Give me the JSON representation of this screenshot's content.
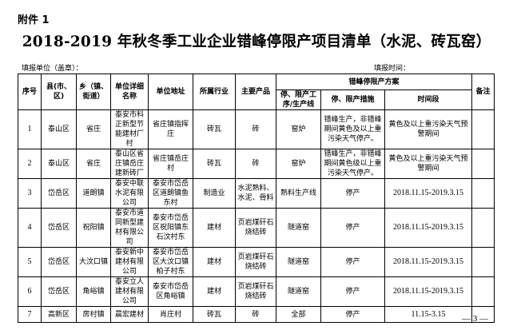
{
  "attachment": "附件 1",
  "title": "2018-2019 年秋冬季工业企业错峰停限产项目清单（水泥、砖瓦窑）",
  "fill_unit": "填报单位（盖章）：",
  "fill_time": "填报时间：",
  "headers": {
    "no": "序号",
    "county": "县(市、区)",
    "town": "乡（镇、街道）",
    "name": "单位详细名称",
    "address": "单位地址",
    "industry": "所属行业",
    "product": "主要产品",
    "plan": "错峰停限产方案",
    "line": "停、限产工序/生产线",
    "measure": "停、限产措施",
    "period": "时间段",
    "remark": "备注"
  },
  "rows": [
    {
      "no": "1",
      "county": "泰山区",
      "town": "省庄",
      "name": "泰安市科正新型节能建材厂村",
      "address": "省庄镇指挥庄",
      "industry": "砖瓦",
      "product": "砖",
      "line": "窑炉",
      "measure": "错峰生产，非错峰期间黄色及以上重污染天气停产。",
      "period": "黄色及以上重污染天气预警期间",
      "remark": ""
    },
    {
      "no": "2",
      "county": "泰山区",
      "town": "省庄",
      "name": "泰山区省庄镇岳庄建新砖厂",
      "address": "省庄镇岳庄村",
      "industry": "砖瓦",
      "product": "砖",
      "line": "窑炉",
      "measure": "错峰生产，非错峰期间黄色级以上重污染天气停产。",
      "period": "黄色及以上重污染天气预警期间",
      "remark": ""
    },
    {
      "no": "3",
      "county": "岱岳区",
      "town": "道朗镇",
      "name": "泰安中联水泥有限公司",
      "address": "泰安市岱岳区道朗镇鱼东村",
      "industry": "制造业",
      "product": "水泥熟料、水泥、骨料",
      "line": "熟料生产线",
      "measure": "停产",
      "period": "2018.11.15-2019.3.15",
      "remark": ""
    },
    {
      "no": "4",
      "county": "岱岳区",
      "town": "祝阳镇",
      "name": "泰安市道同新型建材有限公司",
      "address": "泰安市岱岳区祝阳镇东石汶村东",
      "industry": "建材",
      "product": "页岩煤矸石烧结砖",
      "line": "隧道窑",
      "measure": "停产",
      "period": "2018.11.15-2019.3.15",
      "remark": ""
    },
    {
      "no": "5",
      "county": "岱岳区",
      "town": "大汶口镇",
      "name": "泰安新中建材有限公司",
      "address": "泰安市岱岳区大汶口镇柏子村东",
      "industry": "建材",
      "product": "页岩煤矸石烧结砖",
      "line": "隧道窑",
      "measure": "停产",
      "period": "2018.11.15-2019.3.15",
      "remark": ""
    },
    {
      "no": "6",
      "county": "岱岳区",
      "town": "角峪镇",
      "name": "泰安立人建材有限公司",
      "address": "泰安市岱岳区角峪镇",
      "industry": "建材",
      "product": "页岩煤矸石烧结砖",
      "line": "隧道窑",
      "measure": "停产",
      "period": "2018.11.15-2019.3.15",
      "remark": ""
    },
    {
      "no": "7",
      "county": "高新区",
      "town": "房村镇",
      "name": "晨宏建材",
      "address": "肖庄村",
      "industry": "砖瓦",
      "product": "砖",
      "line": "全部",
      "measure": "停产",
      "period": "11.15-3.15",
      "remark": ""
    }
  ],
  "page_number": "— 3 —"
}
